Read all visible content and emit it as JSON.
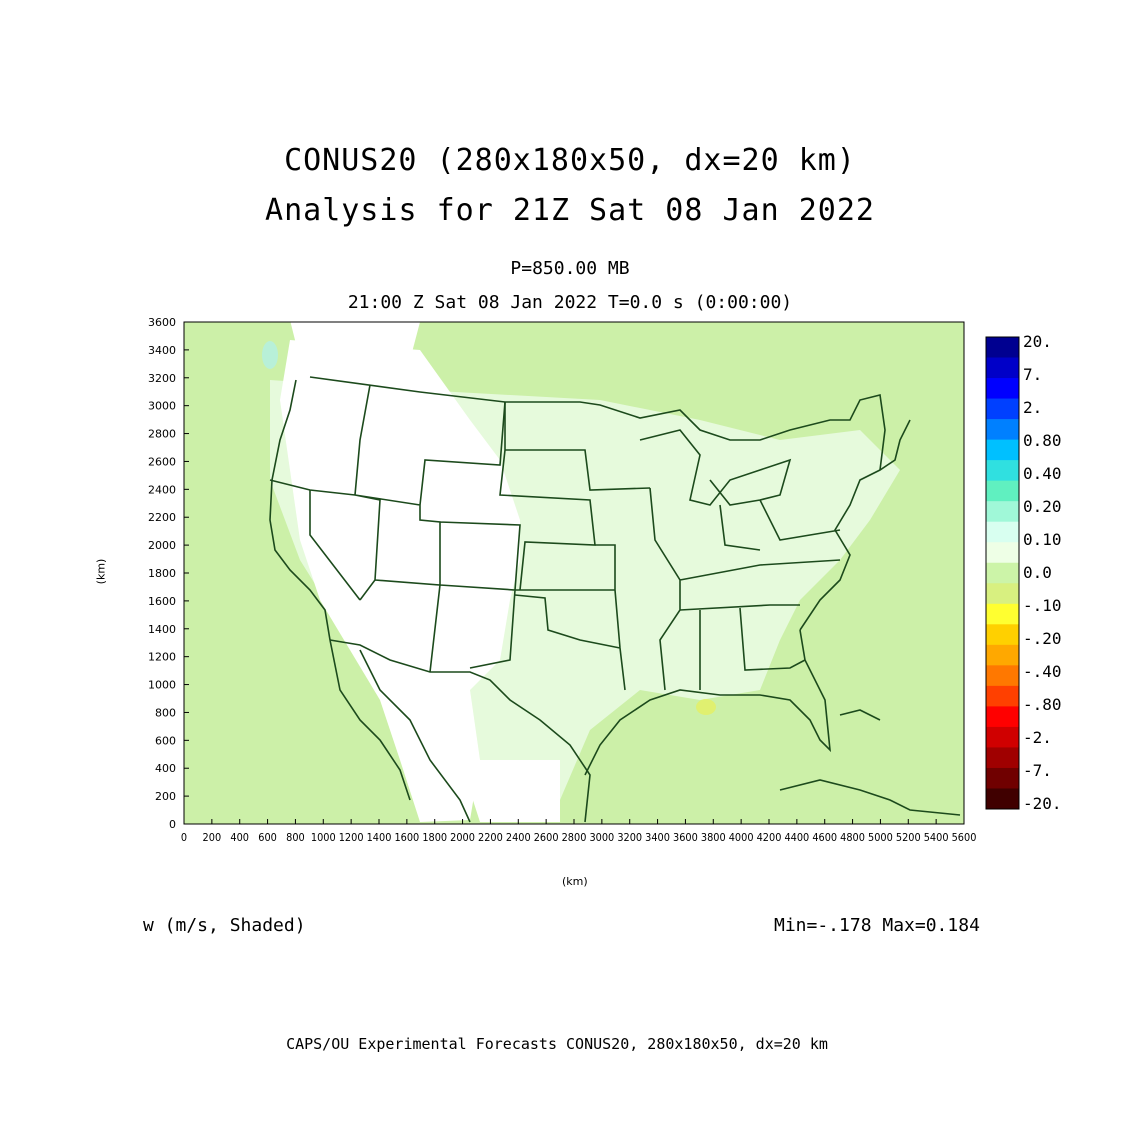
{
  "title": {
    "line1": "CONUS20 (280x180x50, dx=20 km)",
    "line2": "Analysis for 21Z Sat 08 Jan 2022"
  },
  "subtitle": {
    "level": "P=850.00 MB",
    "time": "21:00 Z Sat 08 Jan 2022   T=0.0 s (0:00:00)"
  },
  "axes": {
    "x_label": "(km)",
    "y_label": "(km)",
    "x_ticks": [
      0,
      200,
      400,
      600,
      800,
      1000,
      1200,
      1400,
      1600,
      1800,
      2000,
      2200,
      2400,
      2600,
      2800,
      3000,
      3200,
      3400,
      3600,
      3800,
      4000,
      4200,
      4400,
      4600,
      4800,
      5000,
      5200,
      5400,
      5600
    ],
    "y_ticks": [
      0,
      200,
      400,
      600,
      800,
      1000,
      1200,
      1400,
      1600,
      1800,
      2000,
      2200,
      2400,
      2600,
      2800,
      3000,
      3200,
      3400,
      3600
    ],
    "x_range": [
      0,
      5600
    ],
    "y_range": [
      0,
      3600
    ]
  },
  "field": {
    "label": "w (m/s, Shaded)",
    "minmax": "Min=-.178 Max=0.184"
  },
  "colorbar": {
    "colors": [
      "#000090",
      "#0000c8",
      "#0000ff",
      "#0040ff",
      "#0080ff",
      "#00c0ff",
      "#30e0e0",
      "#60f0c0",
      "#a0f8d8",
      "#d8fff0",
      "#eeffe6",
      "#ccf4a8",
      "#d8f080",
      "#ffff30",
      "#ffd000",
      "#ffa800",
      "#ff7800",
      "#ff4000",
      "#ff0000",
      "#d00000",
      "#a00000",
      "#700000",
      "#400000"
    ],
    "labels": [
      "20.",
      "7.",
      "2.",
      "0.80",
      "0.40",
      "0.20",
      "0.10",
      "0.0",
      "-.10",
      "-.20",
      "-.40",
      "-.80",
      "-2.",
      "-7.",
      "-20."
    ]
  },
  "footer": "CAPS/OU Experimental Forecasts  CONUS20, 280x180x50, dx=20 km",
  "map_colors": {
    "background_field": "#ccf0a8",
    "weak_field": "#e6fadc",
    "null_field": "#ffffff",
    "borders": "#1c4a1c"
  }
}
